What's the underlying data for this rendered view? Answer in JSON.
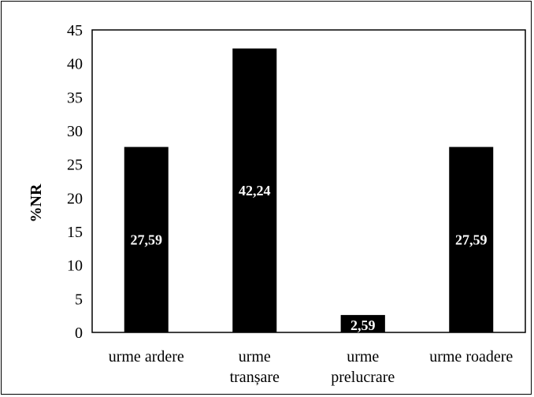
{
  "chart_data": {
    "type": "bar",
    "title": "",
    "xlabel": "",
    "ylabel": "%NR",
    "ylim": [
      0,
      45
    ],
    "yticks": [
      "0",
      "5",
      "10",
      "15",
      "20",
      "25",
      "30",
      "35",
      "40",
      "45"
    ],
    "categories": [
      [
        "urme ardere"
      ],
      [
        "urme",
        "tranșare"
      ],
      [
        "urme",
        "prelucrare"
      ],
      [
        "urme roadere"
      ]
    ],
    "values": [
      27.59,
      42.24,
      2.59,
      27.59
    ],
    "data_labels": [
      "27,59",
      "42,24",
      "2,59",
      "27,59"
    ],
    "bar_color": "#000000",
    "grid": false,
    "legend": "none"
  }
}
